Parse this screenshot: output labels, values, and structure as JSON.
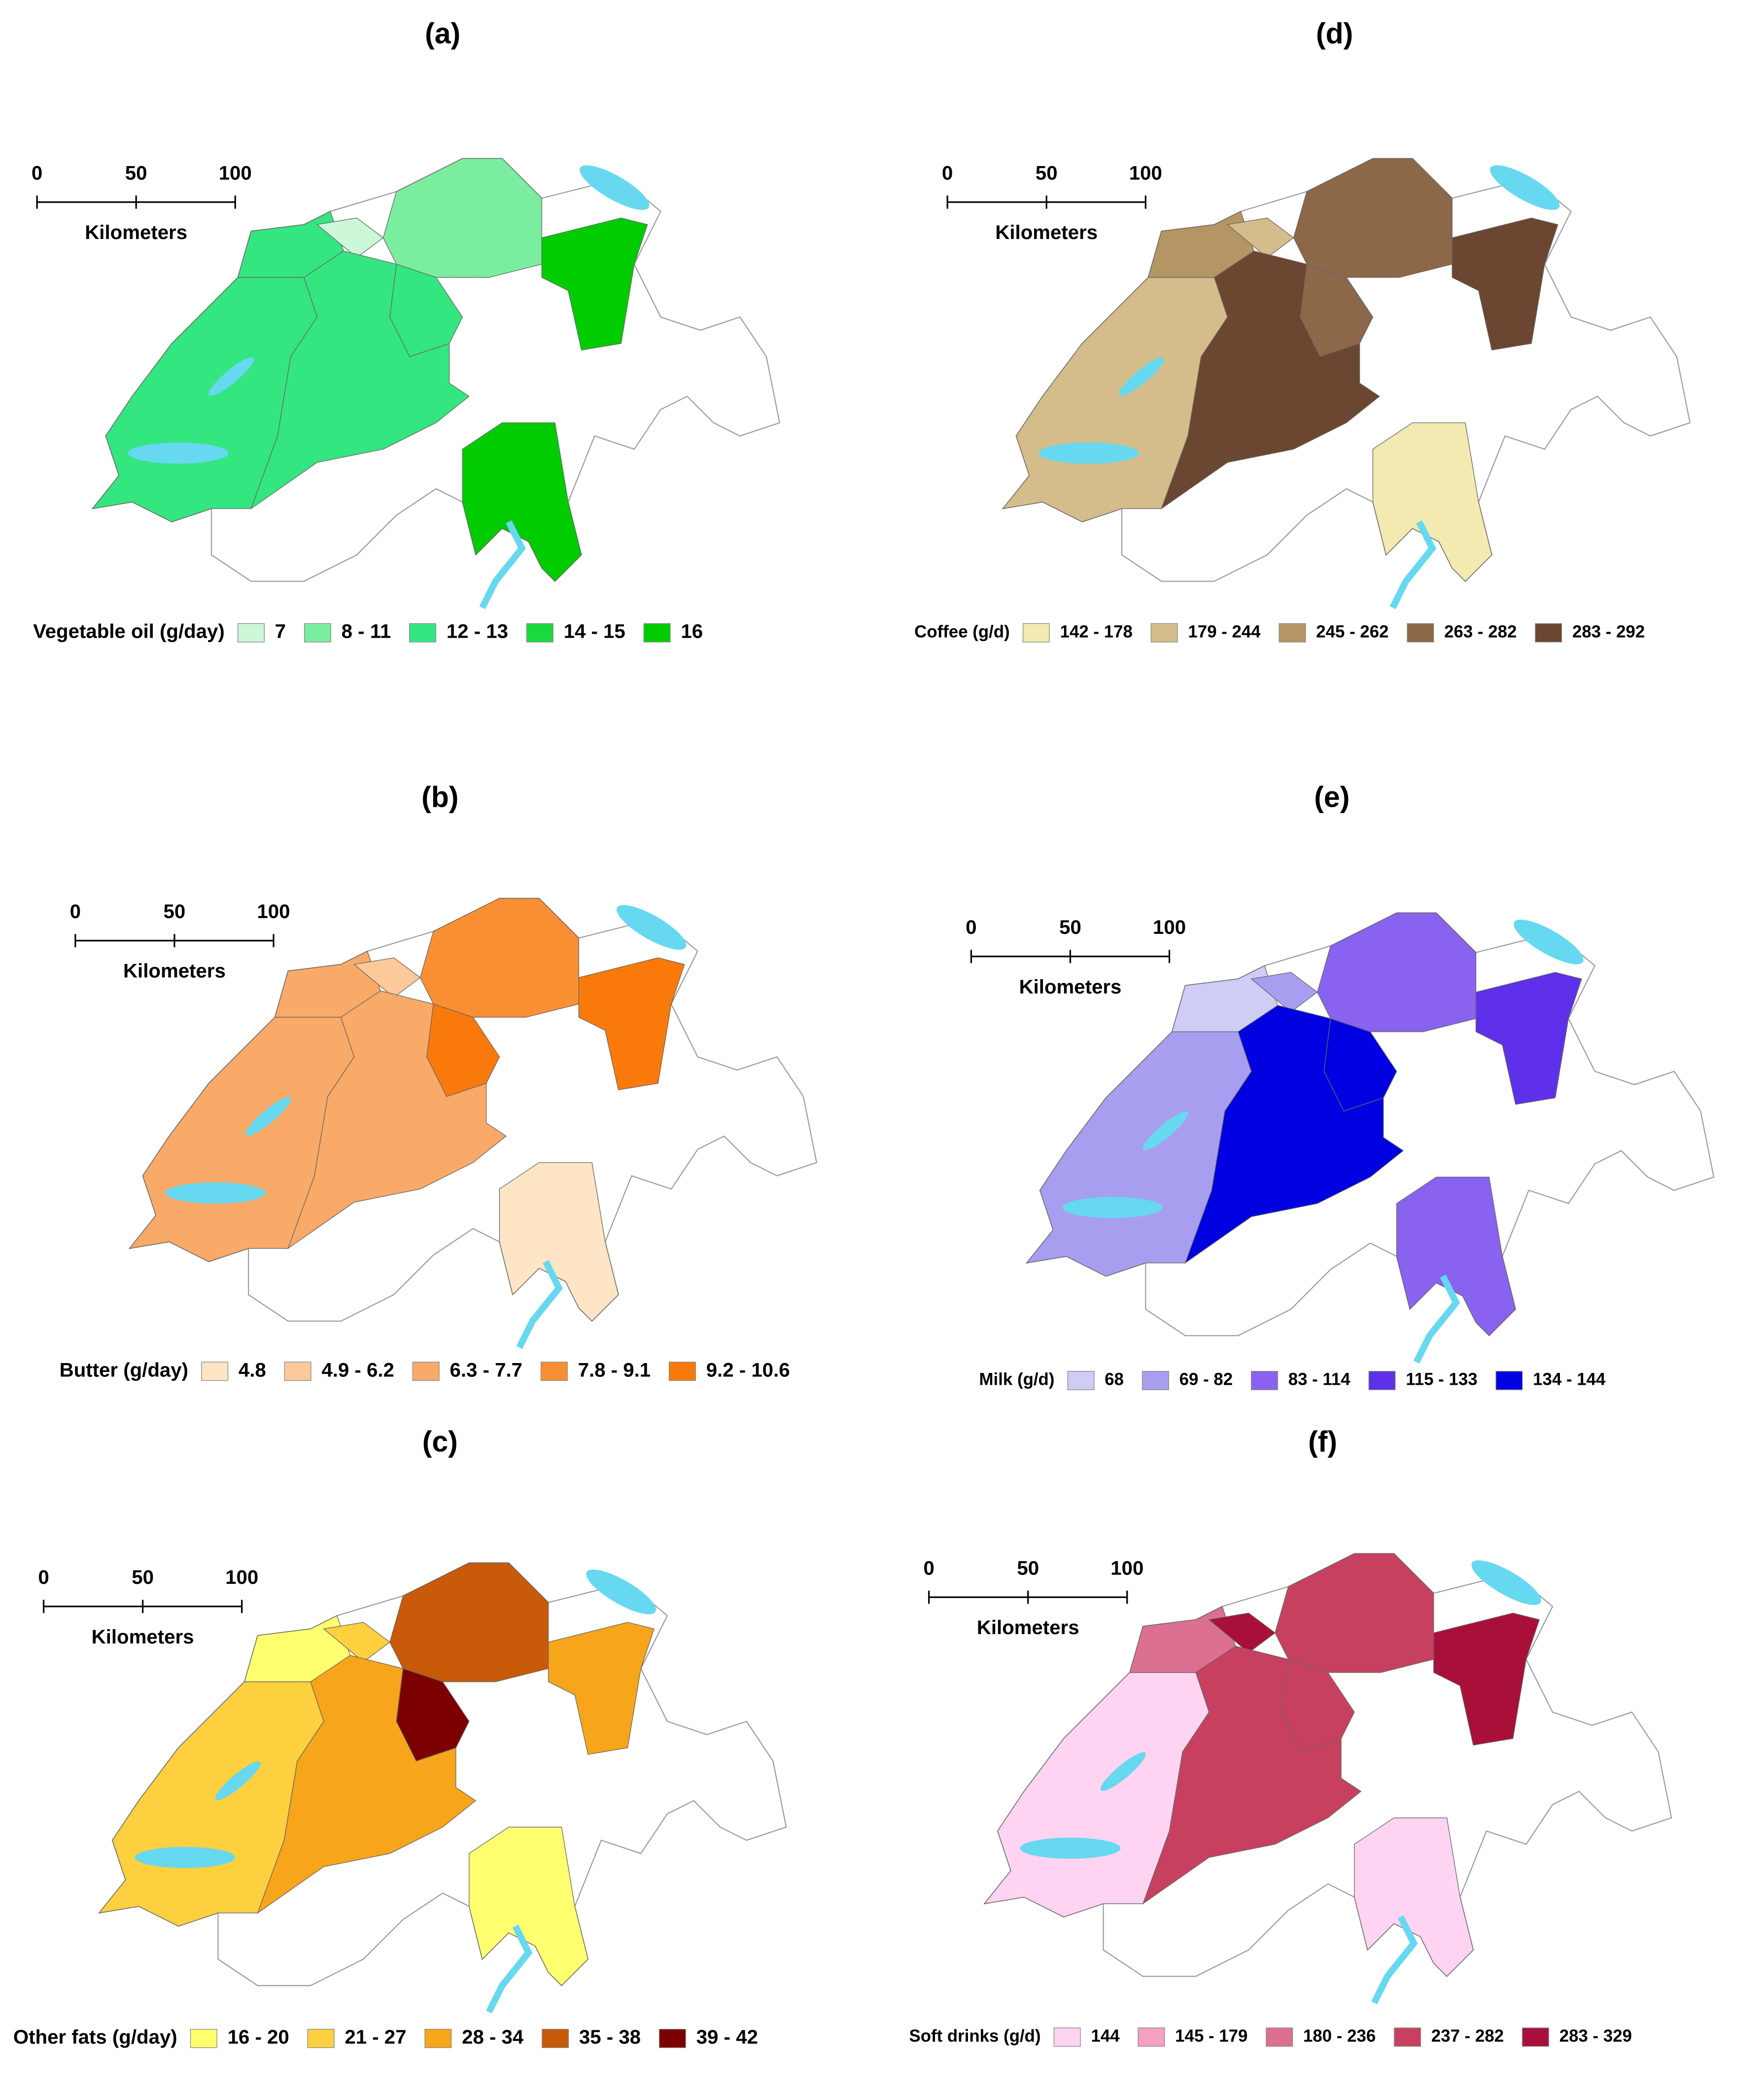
{
  "panels": [
    {
      "label": "(a)",
      "scale": {
        "ticks": [
          0,
          50,
          100
        ],
        "unit": "Kilometers"
      },
      "legend": {
        "title": "Vegetable oil (g/day)",
        "classes": [
          {
            "label": "7",
            "color": "#ccf7d8"
          },
          {
            "label": "8 - 11",
            "color": "#7aee9e"
          },
          {
            "label": "12 - 13",
            "color": "#33e680"
          },
          {
            "label": "14 - 15",
            "color": "#19d93f"
          },
          {
            "label": "16",
            "color": "#00cc00"
          }
        ]
      }
    },
    {
      "label": "(b)",
      "scale": {
        "ticks": [
          0,
          50,
          100
        ],
        "unit": "Kilometers"
      },
      "legend": {
        "title": "Butter (g/day)",
        "classes": [
          {
            "label": "4.8",
            "color": "#fde5c6"
          },
          {
            "label": "4.9 - 6.2",
            "color": "#fbc99a"
          },
          {
            "label": "6.3 - 7.7",
            "color": "#f9a968"
          },
          {
            "label": "7.8 - 9.1",
            "color": "#f98f33"
          },
          {
            "label": "9.2 - 10.6",
            "color": "#f97a0a"
          }
        ]
      }
    },
    {
      "label": "(c)",
      "scale": {
        "ticks": [
          0,
          50,
          100
        ],
        "unit": "Kilometers"
      },
      "legend": {
        "title": "Other fats (g/day)",
        "classes": [
          {
            "label": "16 - 20",
            "color": "#ffff70"
          },
          {
            "label": "21 - 27",
            "color": "#fdd040"
          },
          {
            "label": "28 - 34",
            "color": "#f7a51a"
          },
          {
            "label": "35 - 38",
            "color": "#c85a0a"
          },
          {
            "label": "39 - 42",
            "color": "#7d0000"
          }
        ]
      }
    },
    {
      "label": "(d)",
      "scale": {
        "ticks": [
          0,
          50,
          100
        ],
        "unit": "Kilometers"
      },
      "legend": {
        "title": "Coffee (g/d)",
        "classes": [
          {
            "label": "142 - 178",
            "color": "#f2eab0"
          },
          {
            "label": "179 - 244",
            "color": "#d4bd8a"
          },
          {
            "label": "245 - 262",
            "color": "#b59564"
          },
          {
            "label": "263 - 282",
            "color": "#8c6748"
          },
          {
            "label": "283 - 292",
            "color": "#6b4630"
          }
        ]
      }
    },
    {
      "label": "(e)",
      "scale": {
        "ticks": [
          0,
          50,
          100
        ],
        "unit": "Kilometers"
      },
      "legend": {
        "title": "Milk (g/d)",
        "classes": [
          {
            "label": "68",
            "color": "#cfcdf6"
          },
          {
            "label": "69 - 82",
            "color": "#a89ef0"
          },
          {
            "label": "83 - 114",
            "color": "#8a62f0"
          },
          {
            "label": "115 - 133",
            "color": "#5f30ea"
          },
          {
            "label": "134 - 144",
            "color": "#0000e0"
          }
        ]
      }
    },
    {
      "label": "(f)",
      "scale": {
        "ticks": [
          0,
          50,
          100
        ],
        "unit": "Kilometers"
      },
      "legend": {
        "title": "Soft drinks (g/d)",
        "classes": [
          {
            "label": "144",
            "color": "#fed4f2"
          },
          {
            "label": "145 - 179",
            "color": "#f4a0c0"
          },
          {
            "label": "180 - 236",
            "color": "#dc7090"
          },
          {
            "label": "237 - 282",
            "color": "#c84060"
          },
          {
            "label": "283 - 329",
            "color": "#a8103a"
          }
        ]
      }
    }
  ]
}
